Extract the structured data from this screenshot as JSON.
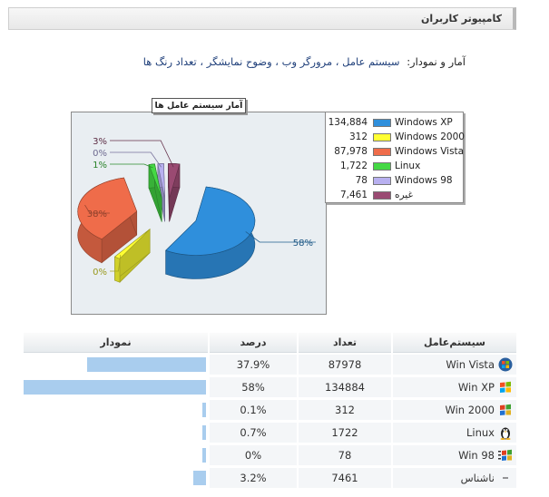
{
  "header": {
    "title": "کامپیوتر کاربران"
  },
  "stats": {
    "label": "آمار و نمودار:",
    "links": "سیستم عامل ، مرورگر وب ، وضوح نمایشگر ، تعداد رنگ ها"
  },
  "chart_title": "آمار سیستم عامل ها",
  "chart_data": {
    "type": "pie",
    "title": "آمار سیستم عامل ها",
    "categories": [
      "Windows XP",
      "Windows 2000",
      "Windows Vista",
      "Linux",
      "Windows 98",
      "غیره"
    ],
    "values": [
      134884,
      312,
      87978,
      1722,
      78,
      7461
    ],
    "labels": [
      "58%",
      "0%",
      "38%",
      "1%",
      "0%",
      "3%"
    ],
    "colors": [
      "#2f8fdc",
      "#ffff33",
      "#ef6c4a",
      "#44d844",
      "#b8b0f0",
      "#9a4a72"
    ],
    "legend_values": [
      "134,884",
      "312",
      "87,978",
      "1,722",
      "78",
      "7,461"
    ],
    "legend_position": "right",
    "exploded": true,
    "three_d": true
  },
  "table": {
    "headers": {
      "os": "سیستم‌عامل",
      "count": "تعداد",
      "percent": "درصد",
      "chart": "نمودار"
    },
    "rows": [
      {
        "os": "Win Vista",
        "icon": "windows-vista-icon",
        "count": "87978",
        "percent": "37.9%",
        "bar_fraction": 0.653
      },
      {
        "os": "Win XP",
        "icon": "windows-xp-icon",
        "count": "134884",
        "percent": "58%",
        "bar_fraction": 1.0
      },
      {
        "os": "Win 2000",
        "icon": "windows-2000-icon",
        "count": "312",
        "percent": "0.1%",
        "bar_fraction": 0.02
      },
      {
        "os": "Linux",
        "icon": "linux-penguin-icon",
        "count": "1722",
        "percent": "0.7%",
        "bar_fraction": 0.02
      },
      {
        "os": "Win 98",
        "icon": "windows-98-icon",
        "count": "78",
        "percent": "0%",
        "bar_fraction": 0.02
      },
      {
        "os": "ناشناس",
        "icon": "unknown-dash-icon",
        "count": "7461",
        "percent": "3.2%",
        "bar_fraction": 0.07
      }
    ]
  }
}
